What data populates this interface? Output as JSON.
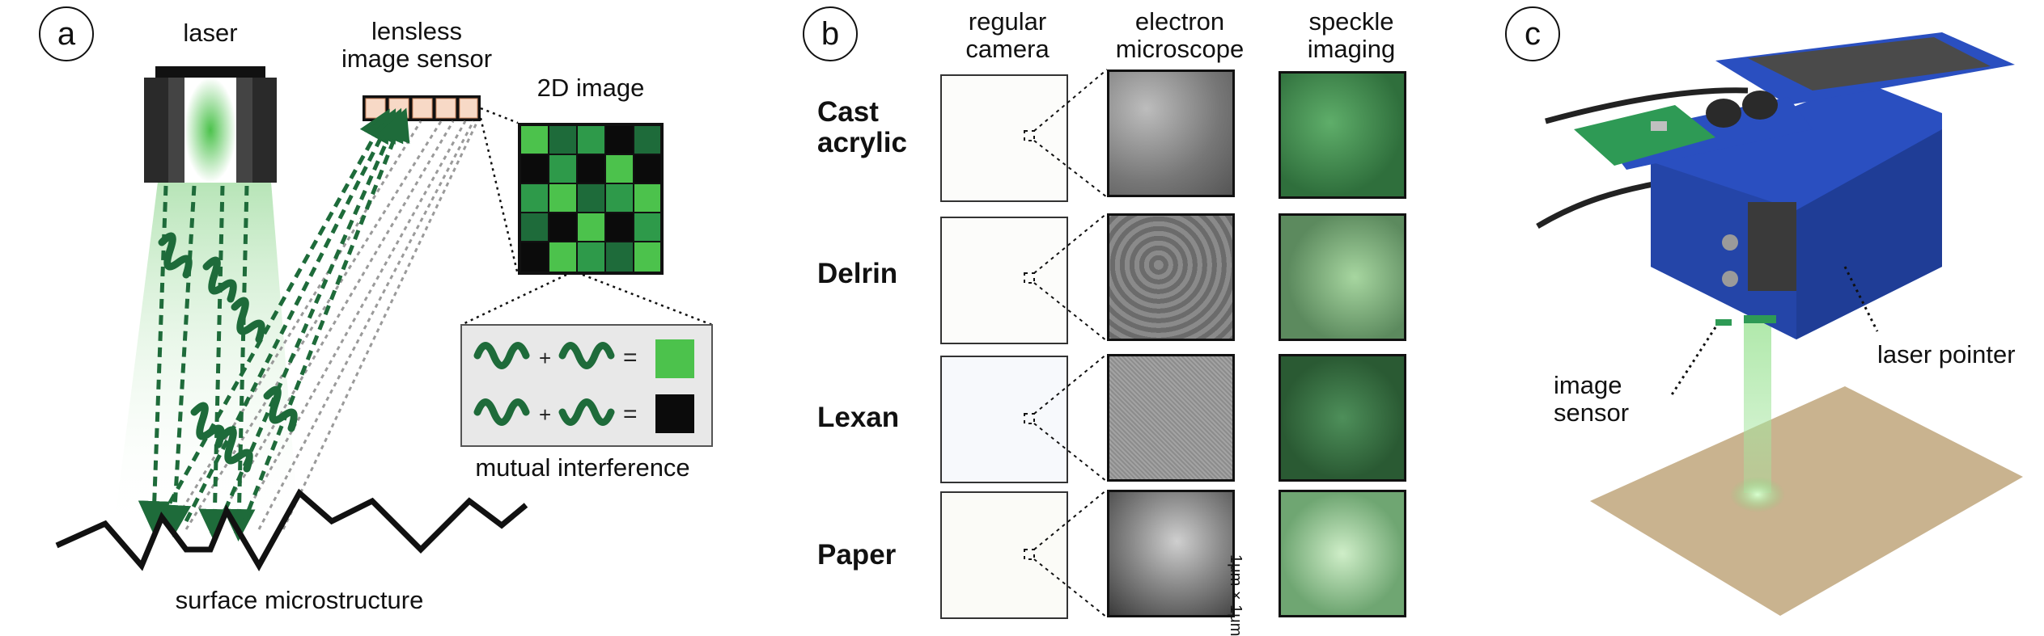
{
  "panel_a": {
    "letter": "a",
    "laser_label": "laser",
    "sensor_label": "lensless\nimage sensor",
    "image_label": "2D image",
    "interference_label": "mutual interference",
    "plus_sign": "+",
    "equals_sign": "=",
    "surface_label": "surface microstructure",
    "colors": {
      "dark_green": "#1e6b3a",
      "bright_green": "#4cc24c",
      "mid_green": "#2e9a4a",
      "black": "#0b0b0b"
    }
  },
  "panel_b": {
    "letter": "b",
    "column_headers": [
      "regular\ncamera",
      "electron\nmicroscope",
      "speckle\nimaging"
    ],
    "rows": [
      "Cast\nacrylic",
      "Delrin",
      "Lexan",
      "Paper"
    ],
    "scale_label": "1μm × 1μm"
  },
  "panel_c": {
    "letter": "c",
    "image_sensor_label": "image\nsensor",
    "laser_pointer_label": "laser pointer",
    "colors": {
      "device_blue": "#2a4fc0",
      "pcb_green": "#2e9a55",
      "sand": "#c9b38f"
    }
  }
}
